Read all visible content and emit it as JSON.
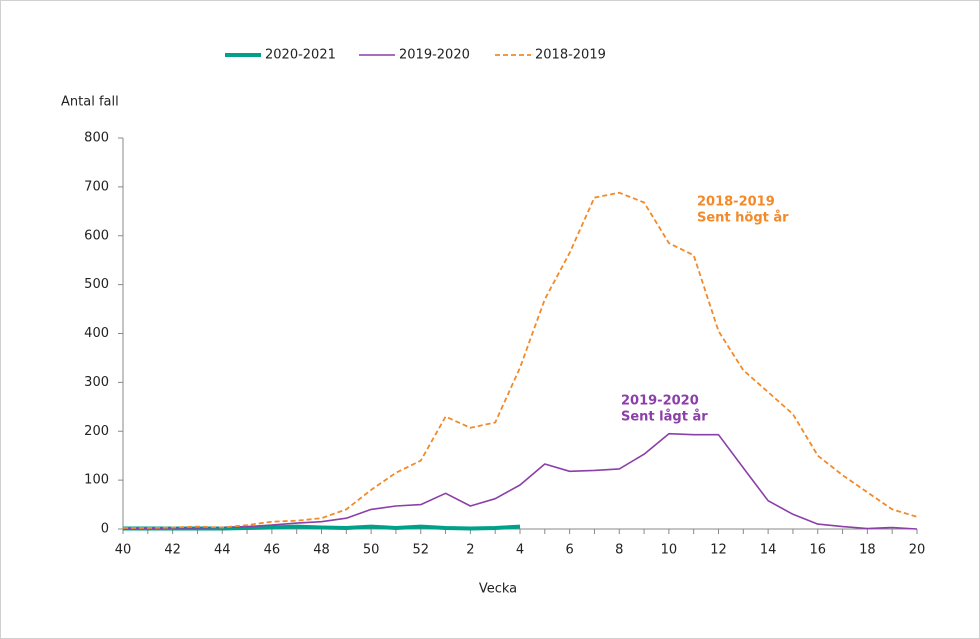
{
  "chart_data": {
    "type": "line",
    "y_label": "Antal fall",
    "x_label": "Vecka",
    "categories": [
      "40",
      null,
      "42",
      null,
      "44",
      null,
      "46",
      null,
      "48",
      null,
      "50",
      null,
      "52",
      null,
      "2",
      null,
      "4",
      null,
      "6",
      null,
      "8",
      null,
      "10",
      null,
      "12",
      null,
      "14",
      null,
      "16",
      null,
      "18",
      null,
      "20"
    ],
    "series": [
      {
        "name": "2020-2021",
        "color": "#00a08a",
        "width": 4,
        "dashed": false,
        "values": [
          1,
          1,
          1,
          1,
          1,
          2,
          3,
          5,
          3,
          2,
          5,
          2,
          5,
          2,
          1,
          2,
          5,
          null,
          null,
          null,
          null,
          null,
          null,
          null,
          null,
          null,
          null,
          null,
          null,
          null,
          null,
          null,
          null
        ]
      },
      {
        "name": "2019-2020",
        "color": "#8b3fa8",
        "width": 1.6,
        "dashed": false,
        "values": [
          0,
          1,
          2,
          2,
          3,
          5,
          8,
          12,
          15,
          22,
          40,
          47,
          50,
          73,
          47,
          62,
          90,
          133,
          118,
          120,
          123,
          153,
          195,
          193,
          193,
          125,
          58,
          30,
          10,
          5,
          1,
          3,
          0
        ]
      },
      {
        "name": "2018-2019",
        "color": "#f28a2a",
        "width": 1.8,
        "dashed": true,
        "values": [
          2,
          2,
          3,
          5,
          3,
          8,
          15,
          17,
          22,
          40,
          80,
          115,
          140,
          230,
          207,
          218,
          330,
          470,
          565,
          678,
          688,
          668,
          585,
          560,
          405,
          325,
          280,
          235,
          150,
          110,
          75,
          40,
          25
        ]
      }
    ],
    "annotations": [
      {
        "lines": [
          "2018-2019",
          "Sent högt år"
        ],
        "color": "#f28a2a"
      },
      {
        "lines": [
          "2019-2020",
          "Sent lågt år"
        ],
        "color": "#8b3fa8"
      }
    ],
    "ylim": [
      0,
      800
    ],
    "yticks": [
      0,
      100,
      200,
      300,
      400,
      500,
      600,
      700,
      800
    ],
    "legend": "top"
  }
}
